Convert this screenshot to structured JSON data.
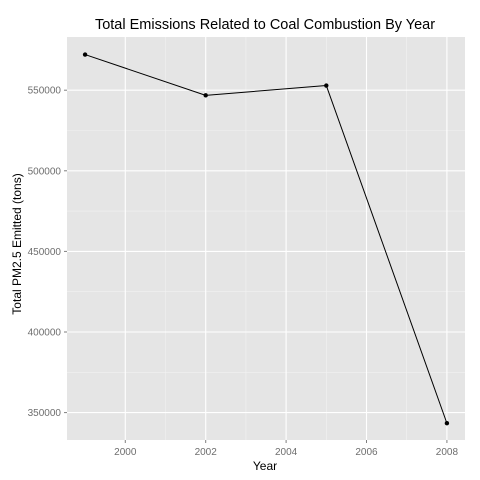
{
  "chart_data": {
    "type": "line",
    "title": "Total Emissions Related to Coal Combustion By Year",
    "xlabel": "Year",
    "ylabel": "Total PM2.5 Emitted (tons)",
    "x": [
      1999,
      2002,
      2005,
      2008
    ],
    "series": [
      {
        "values": [
          572100,
          546800,
          552900,
          343400
        ]
      }
    ],
    "xlim": [
      1998.55,
      2008.45
    ],
    "ylim": [
      333000,
      583000
    ],
    "xticks": [
      2000,
      2002,
      2004,
      2006,
      2008
    ],
    "yticks": [
      350000,
      400000,
      450000,
      500000,
      550000
    ],
    "grid": true,
    "colors": {
      "panel_background": "#e5e5e5",
      "gridline_major": "#ffffff",
      "gridline_minor": "#f2f2f2",
      "line": "#000000",
      "tick_label": "#6e6e6e"
    }
  }
}
